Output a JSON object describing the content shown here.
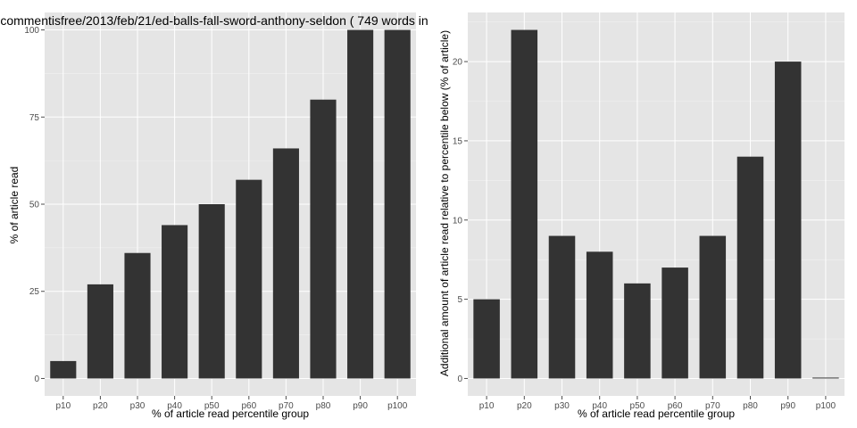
{
  "chart_data": [
    {
      "type": "bar",
      "title": "commentisfree/2013/feb/21/ed-balls-fall-sword-anthony-seldon ( 749 words in",
      "xlabel": "% of article read percentile group",
      "ylabel": "% of article read",
      "categories": [
        "p10",
        "p20",
        "p30",
        "p40",
        "p50",
        "p60",
        "p70",
        "p80",
        "p90",
        "p100"
      ],
      "values": [
        5,
        27,
        36,
        44,
        50,
        57,
        66,
        80,
        100,
        100
      ],
      "ylim": [
        -5,
        105
      ],
      "yticks": [
        0,
        25,
        50,
        75,
        100
      ],
      "grid": true,
      "bar_color": "#333333",
      "panel_color": "#e5e5e5"
    },
    {
      "type": "bar",
      "title": "",
      "xlabel": "% of article read percentile group",
      "ylabel": "Additional amount of article read relative to percentile below (% of article)",
      "categories": [
        "p10",
        "p20",
        "p30",
        "p40",
        "p50",
        "p60",
        "p70",
        "p80",
        "p90",
        "p100"
      ],
      "values": [
        5,
        22,
        9,
        8,
        6,
        7,
        9,
        14,
        20,
        0
      ],
      "ylim": [
        -1.1,
        23.1
      ],
      "yticks": [
        0,
        5,
        10,
        15,
        20
      ],
      "grid": true,
      "bar_color": "#333333",
      "panel_color": "#e5e5e5"
    }
  ]
}
